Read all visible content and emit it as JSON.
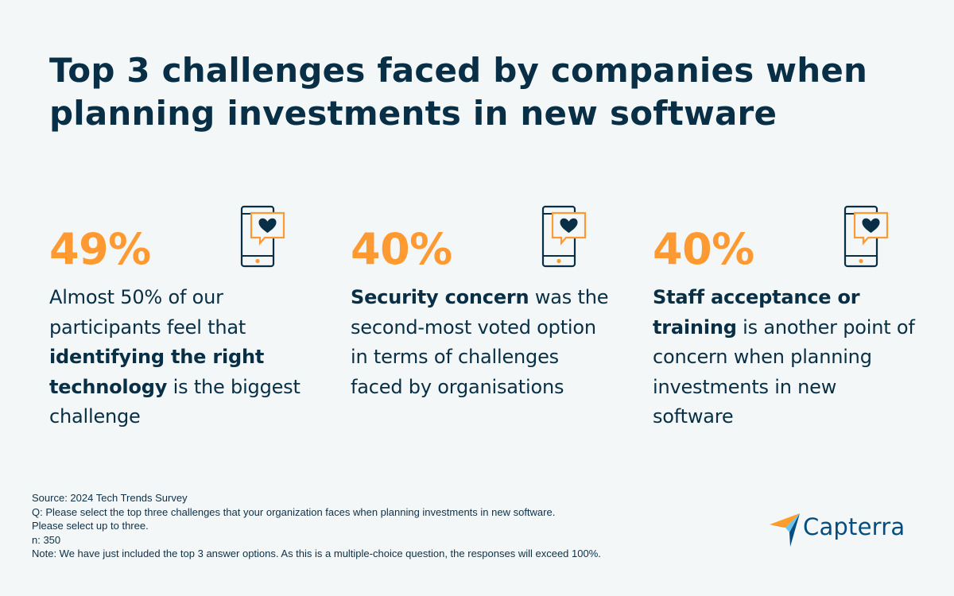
{
  "title": "Top 3 challenges faced by companies when planning investments in new software",
  "icon_name": "phone-heart-message-icon",
  "colors": {
    "accent": "#ff9a33",
    "text": "#082f45",
    "background": "#f3f7f8"
  },
  "stats": [
    {
      "value": "49%",
      "parts": [
        {
          "text": "Almost 50% of our participants feel that ",
          "bold": false
        },
        {
          "text": "identifying the right technology",
          "bold": true
        },
        {
          "text": " is the biggest challenge",
          "bold": false
        }
      ]
    },
    {
      "value": "40%",
      "parts": [
        {
          "text": "Security concern",
          "bold": true
        },
        {
          "text": " was the second-most voted option in terms of challenges faced by organisations",
          "bold": false
        }
      ]
    },
    {
      "value": "40%",
      "parts": [
        {
          "text": "Staff acceptance or training",
          "bold": true
        },
        {
          "text": " is another point of concern when planning investments in new software",
          "bold": false
        }
      ]
    }
  ],
  "footnotes": {
    "source": "Source: 2024 Tech Trends Survey",
    "question": "Q: Please select the top three challenges that your organization faces when planning investments in new software.",
    "instruction": "Please select up to three.",
    "sample": "n: 350",
    "note": "Note: We have just included the top 3 answer options. As this is a multiple-choice question, the responses will exceed 100%."
  },
  "logo": {
    "text": "Capterra"
  }
}
